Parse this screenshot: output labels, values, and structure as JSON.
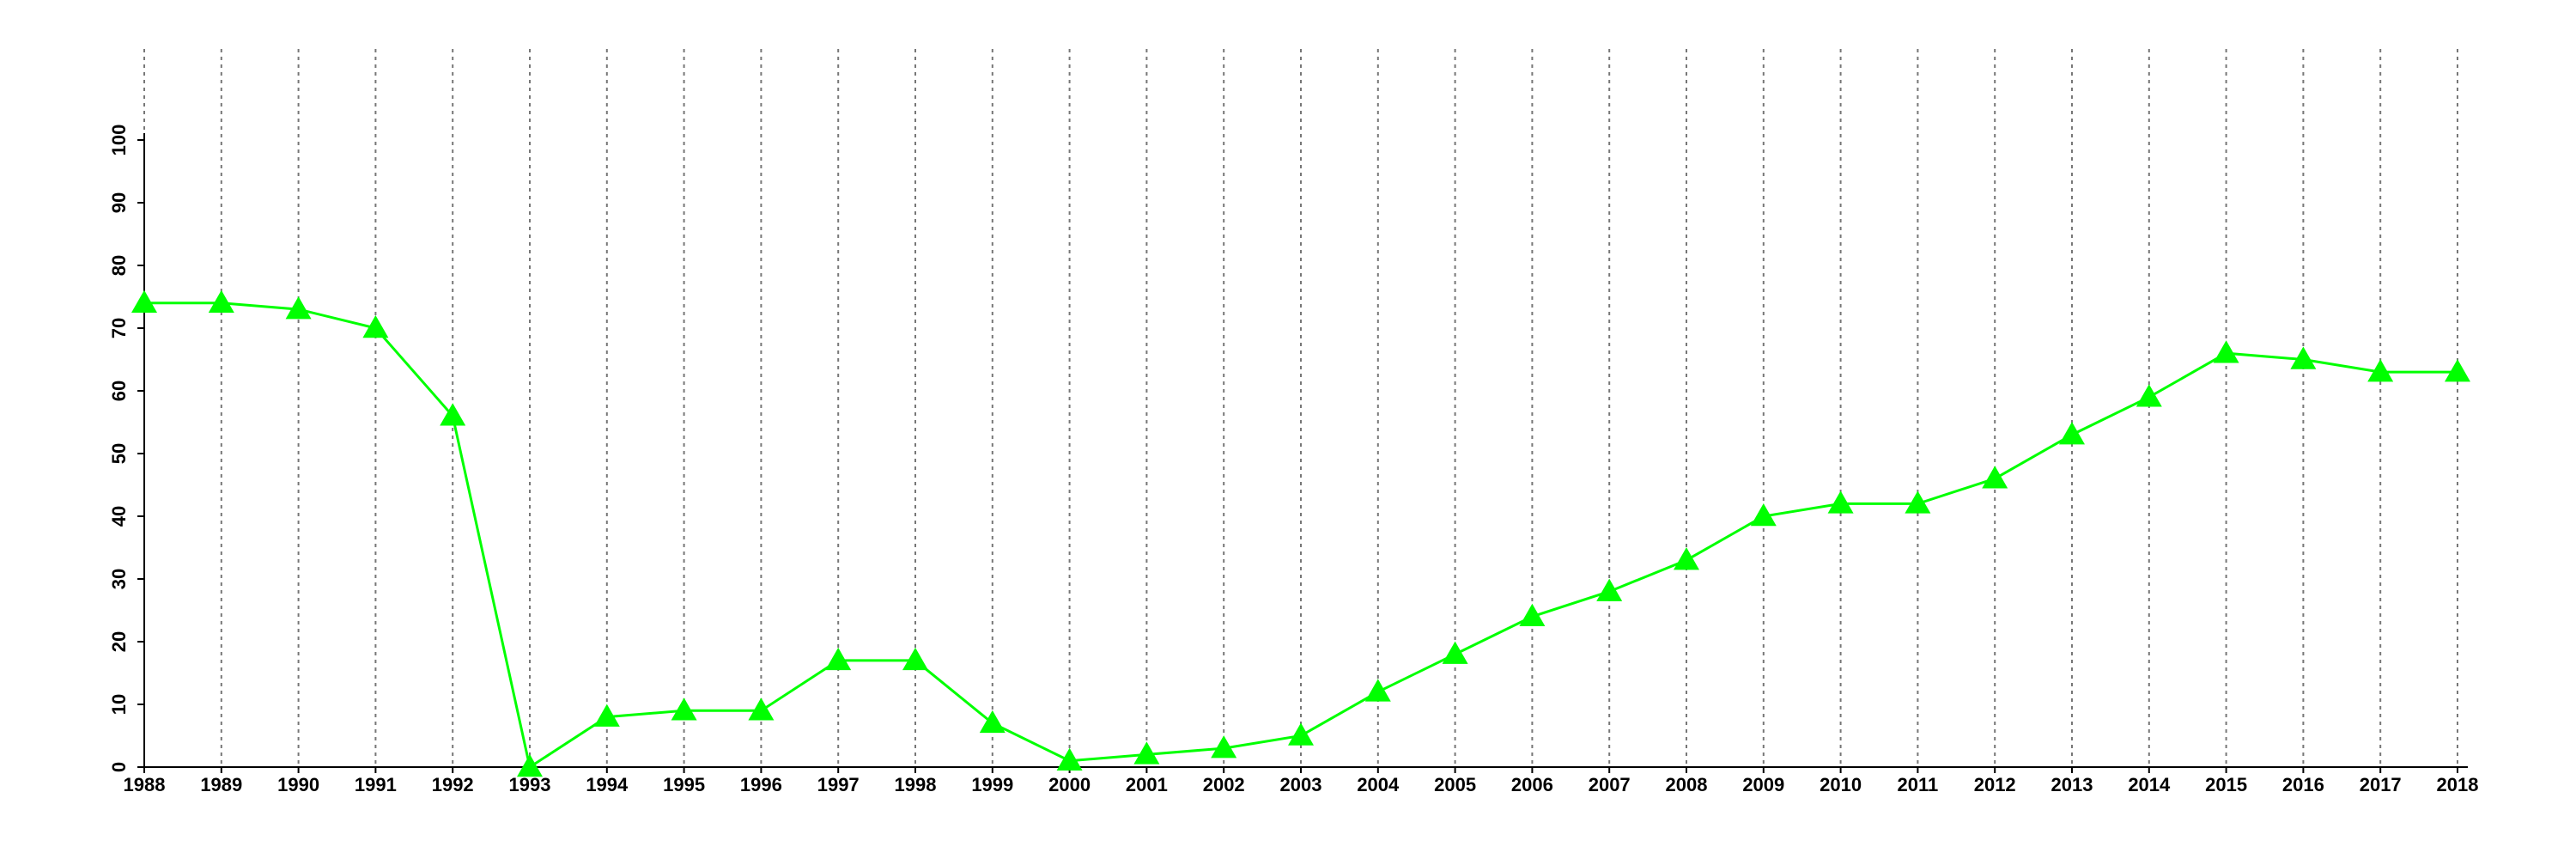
{
  "chart_data": {
    "type": "line",
    "x": [
      1988,
      1989,
      1990,
      1991,
      1992,
      1993,
      1994,
      1995,
      1996,
      1997,
      1998,
      1999,
      2000,
      2001,
      2002,
      2003,
      2004,
      2005,
      2006,
      2007,
      2008,
      2009,
      2010,
      2011,
      2012,
      2013,
      2014,
      2015,
      2016,
      2017,
      2018
    ],
    "series": [
      {
        "color": "#00ff00",
        "values": [
          74,
          74,
          73,
          70,
          56,
          0,
          8,
          9,
          9,
          17,
          17,
          7,
          1,
          2,
          3,
          5,
          12,
          18,
          24,
          28,
          33,
          40,
          42,
          42,
          46,
          53,
          59,
          66,
          65,
          63,
          63
        ]
      }
    ],
    "xlim": [
      1988,
      2018
    ],
    "xticks": [
      1988,
      1989,
      1990,
      1991,
      1992,
      1993,
      1994,
      1995,
      1996,
      1997,
      1998,
      1999,
      2000,
      2001,
      2002,
      2003,
      2004,
      2005,
      2006,
      2007,
      2008,
      2009,
      2010,
      2011,
      2012,
      2013,
      2014,
      2015,
      2016,
      2017,
      2018
    ],
    "ylim": [
      0,
      100
    ],
    "yticks": [
      0,
      10,
      20,
      30,
      40,
      50,
      60,
      70,
      80,
      90,
      100
    ],
    "x_grid": true
  }
}
